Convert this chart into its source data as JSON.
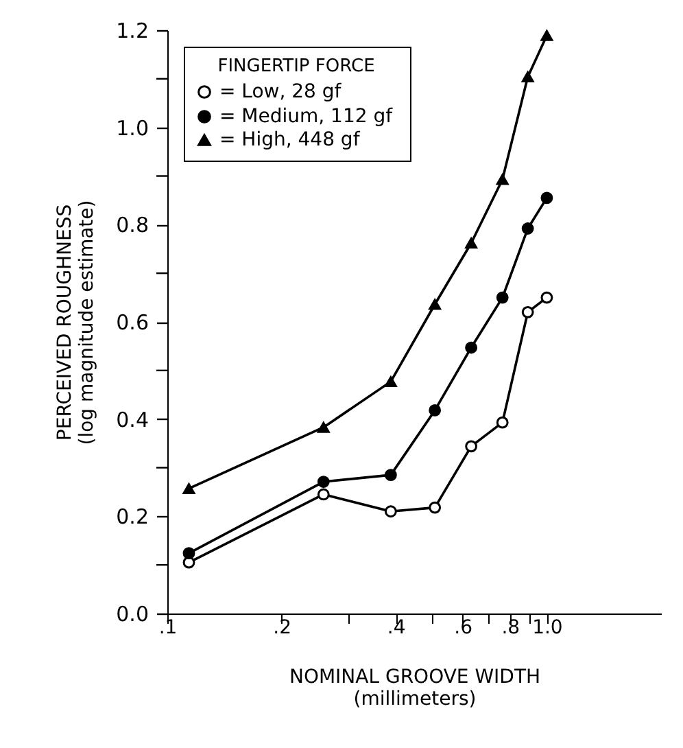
{
  "chart_data": {
    "type": "line",
    "xlabel": "NOMINAL GROOVE WIDTH\n(millimeters)",
    "ylabel": "PERCEIVED ROUGHNESS\n(log magnitude estimate)",
    "legend_title": "FINGERTIP FORCE",
    "x": [
      0.114,
      0.258,
      0.388,
      0.507,
      0.632,
      0.764,
      0.891,
      1.0
    ],
    "series": [
      {
        "name": "= Low,  28  gf",
        "color": "#000000",
        "marker": "circle",
        "values": [
          0.105,
          0.245,
          0.21,
          0.218,
          0.344,
          0.393,
          0.62,
          0.65
        ]
      },
      {
        "name": "= Medium, 112  gf",
        "color": "#000000",
        "marker": "circle",
        "values": [
          0.124,
          0.271,
          0.285,
          0.418,
          0.547,
          0.65,
          0.792,
          0.855
        ]
      },
      {
        "name": "= High, 448  gf",
        "color": "#000000",
        "marker": "triangle",
        "values": [
          0.257,
          0.383,
          0.477,
          0.636,
          0.762,
          0.893,
          1.104,
          1.189
        ]
      }
    ],
    "log": "x",
    "xlim": [
      0.1,
      2.0
    ],
    "xticks": [
      {
        "value": 0.1,
        "label": ".1"
      },
      {
        "value": 0.2,
        "label": ".2"
      },
      {
        "value": 0.3,
        "label": null
      },
      {
        "value": 0.4,
        "label": ".4"
      },
      {
        "value": 0.5,
        "label": null
      },
      {
        "value": 0.6,
        "label": ".6"
      },
      {
        "value": 0.7,
        "label": null
      },
      {
        "value": 0.8,
        "label": ".8"
      },
      {
        "value": 0.9,
        "label": null
      },
      {
        "value": 1.0,
        "label": "1.0"
      }
    ],
    "ylim": [
      0,
      1.2
    ],
    "yticks": [
      {
        "value": 0,
        "label": "0.0"
      },
      {
        "value": 0.1,
        "label": null
      },
      {
        "value": 0.2,
        "label": "0.2"
      },
      {
        "value": 0.3,
        "label": null
      },
      {
        "value": 0.4,
        "label": "0.4"
      },
      {
        "value": 0.5,
        "label": null
      },
      {
        "value": 0.6,
        "label": "0.6"
      },
      {
        "value": 0.7,
        "label": null
      },
      {
        "value": 0.8,
        "label": "0.8"
      },
      {
        "value": 0.9,
        "label": null
      },
      {
        "value": 1.0,
        "label": "1.0"
      },
      {
        "value": 1.1,
        "label": null
      },
      {
        "value": 1.2,
        "label": "1.2"
      }
    ],
    "grid": false,
    "legend": "top left",
    "line_style": "solid"
  }
}
